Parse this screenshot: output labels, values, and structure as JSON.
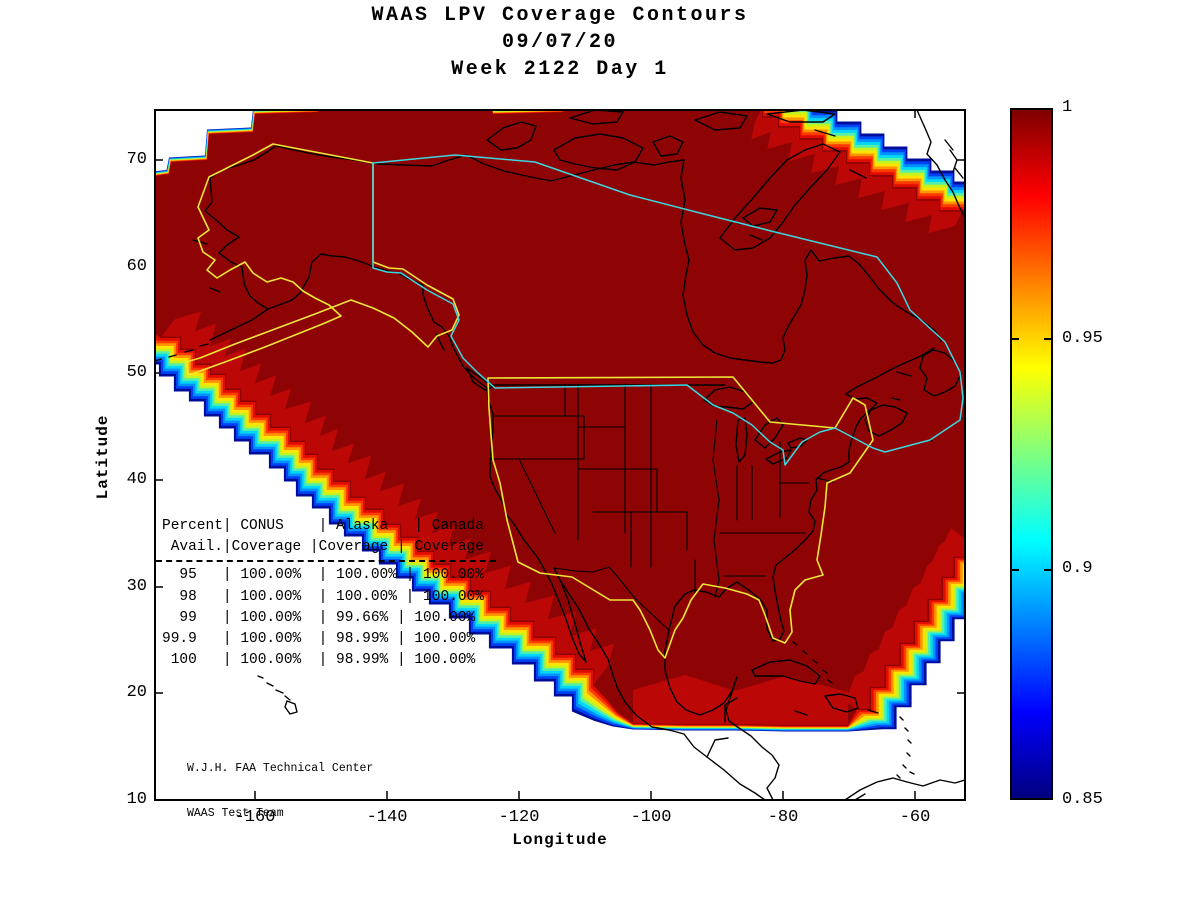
{
  "header": {
    "title": "WAAS LPV Coverage Contours",
    "date": "09/07/20",
    "week": "Week 2122 Day 1"
  },
  "axes": {
    "x_label": "Longitude",
    "y_label": "Latitude",
    "x_ticks": [
      "-160",
      "-140",
      "-120",
      "-100",
      "-80",
      "-60"
    ],
    "y_ticks": [
      "70",
      "60",
      "50",
      "40",
      "30",
      "20",
      "10"
    ]
  },
  "colorbar": {
    "tick_labels": [
      "1",
      "0.95",
      "0.9",
      "0.85"
    ],
    "range_min": 0.85,
    "range_max": 1
  },
  "table": {
    "lines": [
      "Percent| CONUS    | Alaska   | Canada",
      " Avail.|Coverage |Coverage | Coverage",
      "  95   | 100.00%  | 100.00% | 100.00%",
      "  98   | 100.00%  | 100.00% | 100.00%",
      "  99   | 100.00%  | 99.66% | 100.00%",
      "99.9   | 100.00%  | 98.99% | 100.00%",
      " 100   | 100.00%  | 98.99% | 100.00%"
    ]
  },
  "credit": {
    "line1": "W.J.H. FAA Technical Center",
    "line2": "WAAS Test Team"
  },
  "palette": {
    "fill": "#8e0404",
    "patch": "#bc0707",
    "bands": [
      "#000d9b",
      "#0041f4",
      "#0090ff",
      "#00d8f6",
      "#55efa9",
      "#c6f31e",
      "#ffe400",
      "#ff9600",
      "#ff3a00",
      "#e00c00"
    ],
    "yellow": "#efe63a",
    "cyan": "#3cd7e0",
    "land_line": "#000000",
    "colorbar_gradient": [
      "#7f0000",
      "#ff0000",
      "#ffff00",
      "#00ffff",
      "#0000ff",
      "#00007f"
    ]
  },
  "chart_data": {
    "type": "heatmap",
    "subtype": "filled-contour coverage map with jet colormap",
    "title": "WAAS LPV Coverage Contours",
    "subtitle_lines": [
      "09/07/20",
      "Week 2122 Day 1"
    ],
    "xlabel": "Longitude",
    "ylabel": "Latitude",
    "xlim": [
      -175,
      -52
    ],
    "ylim": [
      10,
      75
    ],
    "x_ticks": [
      -160,
      -140,
      -120,
      -100,
      -80,
      -60
    ],
    "y_ticks": [
      70,
      60,
      50,
      40,
      30,
      20,
      10
    ],
    "grid": false,
    "legend_position": "right-colorbar",
    "colorbar": {
      "colormap": "jet",
      "range": [
        0.85,
        1
      ],
      "tick_values": [
        1,
        0.95,
        0.9,
        0.85
      ]
    },
    "field_description": "LPV availability coverage saturated at 1.0 (dark red) over nearly all of North America (CONUS, Alaska, Canada); rainbow gradient fringe from 1.0 down to 0.85 along the Pacific southwest boundary, flat southern boundary near 17N, southeast Caribbean corner, and the northeast Atlantic/Greenland corner",
    "overlays": [
      "black coastlines and US state boundaries",
      "yellow Alaska service volume outline",
      "yellow CONUS service volume outline",
      "cyan Canada service volume outline"
    ],
    "coverage_table": {
      "columns": [
        "Percent Avail.",
        "CONUS Coverage",
        "Alaska Coverage",
        "Canada Coverage"
      ],
      "rows": [
        [
          "95",
          "100.00%",
          "100.00%",
          "100.00%"
        ],
        [
          "98",
          "100.00%",
          "100.00%",
          "100.00%"
        ],
        [
          "99",
          "100.00%",
          "99.66%",
          "100.00%"
        ],
        [
          "99.9",
          "100.00%",
          "98.99%",
          "100.00%"
        ],
        [
          "100",
          "100.00%",
          "98.99%",
          "100.00%"
        ]
      ]
    }
  }
}
